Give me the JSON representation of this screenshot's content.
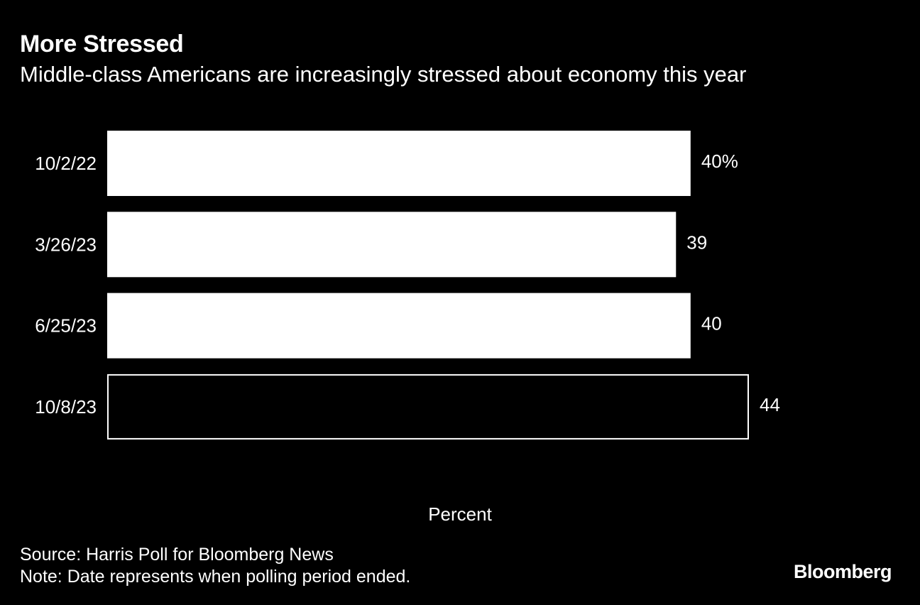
{
  "header": {
    "title": "More Stressed",
    "subtitle": "Middle-class Americans are increasingly stressed about economy this year"
  },
  "chart_data": {
    "type": "bar",
    "orientation": "horizontal",
    "categories": [
      "10/2/22",
      "3/26/23",
      "6/25/23",
      "10/8/23"
    ],
    "values": [
      40,
      39,
      40,
      44
    ],
    "data_labels": [
      "40%",
      "39",
      "40",
      "44"
    ],
    "highlighted_category": "10/8/23",
    "title": "More Stressed",
    "subtitle": "Middle-class Americans are increasingly stressed about economy this year",
    "xlabel": "Percent",
    "ylabel": "",
    "xlim": [
      0,
      44
    ],
    "grid": false,
    "colors": {
      "background": "#000000",
      "bar_fill": "#ffffff",
      "highlight_fill": "#000000",
      "highlight_stroke": "#ffffff",
      "text": "#ffffff"
    }
  },
  "footer": {
    "source": "Source: Harris Poll for Bloomberg News",
    "note": "Note: Date represents when polling period ended.",
    "logo": "Bloomberg"
  }
}
